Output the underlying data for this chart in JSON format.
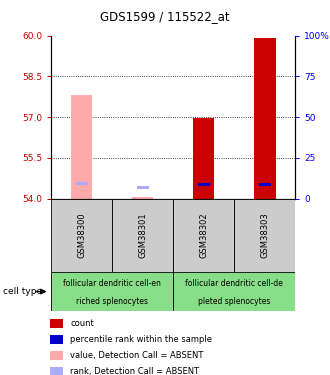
{
  "title": "GDS1599 / 115522_at",
  "samples": [
    "GSM38300",
    "GSM38301",
    "GSM38302",
    "GSM38303"
  ],
  "ylim": [
    54,
    60
  ],
  "yticks_left": [
    54,
    55.5,
    57,
    58.5,
    60
  ],
  "yticks_right_vals": [
    0,
    25,
    50,
    75,
    100
  ],
  "yticks_right_labels": [
    "0",
    "25",
    "50",
    "75",
    "100%"
  ],
  "bar_values_present": [
    null,
    null,
    56.975,
    59.9
  ],
  "bar_color_present": "#cc0000",
  "bar_values_absent": [
    57.8,
    54.07,
    null,
    null
  ],
  "bar_color_absent": "#ffaaaa",
  "rank_values": [
    54.56,
    54.42,
    54.52,
    54.52
  ],
  "rank_colors": [
    "#aaaaff",
    "#aaaaff",
    "#0000cc",
    "#0000cc"
  ],
  "group1_label_top": "follicular dendritic cell-en",
  "group1_label_bottom": "riched splenocytes",
  "group2_label_top": "follicular dendritic cell-de",
  "group2_label_bottom": "pleted splenocytes",
  "cell_type_label": "cell type",
  "group_bg_color": "#88dd88",
  "sample_bg_color": "#cccccc",
  "legend_items": [
    {
      "color": "#cc0000",
      "label": "count"
    },
    {
      "color": "#0000cc",
      "label": "percentile rank within the sample"
    },
    {
      "color": "#ffaaaa",
      "label": "value, Detection Call = ABSENT"
    },
    {
      "color": "#aaaaff",
      "label": "rank, Detection Call = ABSENT"
    }
  ],
  "bar_width": 0.35,
  "figwidth": 3.3,
  "figheight": 3.75,
  "dpi": 100
}
